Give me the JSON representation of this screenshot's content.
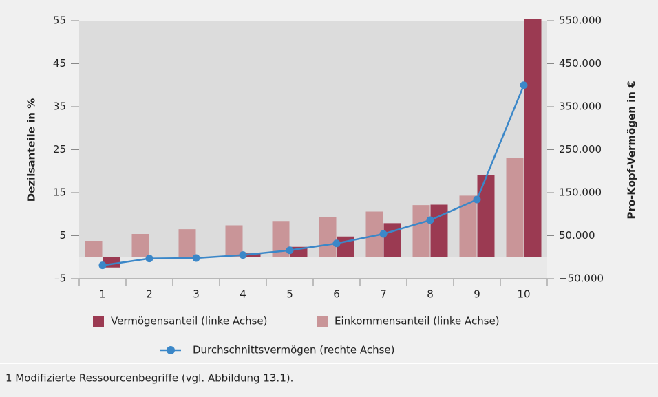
{
  "chart_data": {
    "type": "bar",
    "y_label": "Dezilsanteile in %",
    "y2_label": "Pro-Kopf-Vermögen in €",
    "categories": [
      "1",
      "2",
      "3",
      "4",
      "5",
      "6",
      "7",
      "8",
      "9",
      "10"
    ],
    "series": [
      {
        "name": "Vermögensanteil (linke Achse)",
        "type": "bar",
        "color": "#9b3a52",
        "values": [
          -2.4,
          0,
          0,
          0.9,
          2.4,
          4.8,
          7.9,
          12.2,
          19.0,
          55.4
        ]
      },
      {
        "name": "Einkommensanteil (linke Achse)",
        "type": "bar",
        "color": "#c99598",
        "values": [
          3.8,
          5.4,
          6.5,
          7.4,
          8.4,
          9.4,
          10.6,
          12.1,
          14.3,
          23.0
        ]
      },
      {
        "name": "Durchschnittsvermögen (rechte Achse)",
        "type": "line",
        "axis": "y2",
        "color": "#3b87c8",
        "values": [
          -19000,
          -3000,
          -2000,
          5000,
          16000,
          32000,
          54000,
          86000,
          134000,
          400000
        ]
      }
    ],
    "ylim": [
      -5,
      55
    ],
    "yticks": [
      {
        "value": -5,
        "label": "–5"
      },
      5,
      15,
      25,
      35,
      45,
      55
    ],
    "y2lim": [
      -50000,
      550000
    ],
    "y2ticks": [
      {
        "value": -50000,
        "label": "−50.000"
      },
      {
        "value": 50000,
        "label": "50.000"
      },
      {
        "value": 150000,
        "label": "150.000"
      },
      {
        "value": 250000,
        "label": "250.000"
      },
      {
        "value": 350000,
        "label": "350.000"
      },
      {
        "value": 450000,
        "label": "450.000"
      },
      {
        "value": 550000,
        "label": "550.000"
      }
    ],
    "footnote": "1 Modifizierte Ressourcenbegriffe (vgl. Abbildung 13.1)."
  }
}
